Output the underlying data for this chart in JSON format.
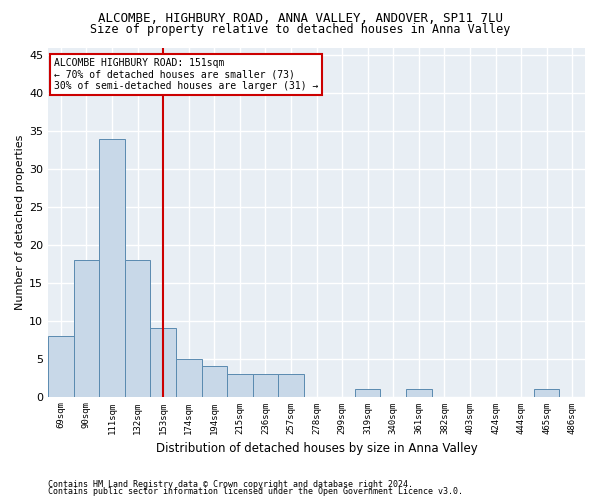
{
  "title1": "ALCOMBE, HIGHBURY ROAD, ANNA VALLEY, ANDOVER, SP11 7LU",
  "title2": "Size of property relative to detached houses in Anna Valley",
  "xlabel": "Distribution of detached houses by size in Anna Valley",
  "ylabel": "Number of detached properties",
  "footer1": "Contains HM Land Registry data © Crown copyright and database right 2024.",
  "footer2": "Contains public sector information licensed under the Open Government Licence v3.0.",
  "categories": [
    "69sqm",
    "90sqm",
    "111sqm",
    "132sqm",
    "153sqm",
    "174sqm",
    "194sqm",
    "215sqm",
    "236sqm",
    "257sqm",
    "278sqm",
    "299sqm",
    "319sqm",
    "340sqm",
    "361sqm",
    "382sqm",
    "403sqm",
    "424sqm",
    "444sqm",
    "465sqm",
    "486sqm"
  ],
  "values": [
    8,
    18,
    34,
    18,
    9,
    5,
    4,
    3,
    3,
    3,
    0,
    0,
    1,
    0,
    1,
    0,
    0,
    0,
    0,
    1,
    0
  ],
  "bar_color": "#c8d8e8",
  "bar_edge_color": "#5a8ab0",
  "vline_index": 4,
  "vline_color": "#cc0000",
  "annotation_line1": "ALCOMBE HIGHBURY ROAD: 151sqm",
  "annotation_line2": "← 70% of detached houses are smaller (73)",
  "annotation_line3": "30% of semi-detached houses are larger (31) →",
  "annotation_box_color": "#cc0000",
  "ylim": [
    0,
    46
  ],
  "yticks": [
    0,
    5,
    10,
    15,
    20,
    25,
    30,
    35,
    40,
    45
  ],
  "background_color": "#e8eef4",
  "grid_color": "#ffffff",
  "title1_fontsize": 9,
  "title2_fontsize": 8.5,
  "xlabel_fontsize": 8.5,
  "ylabel_fontsize": 8
}
